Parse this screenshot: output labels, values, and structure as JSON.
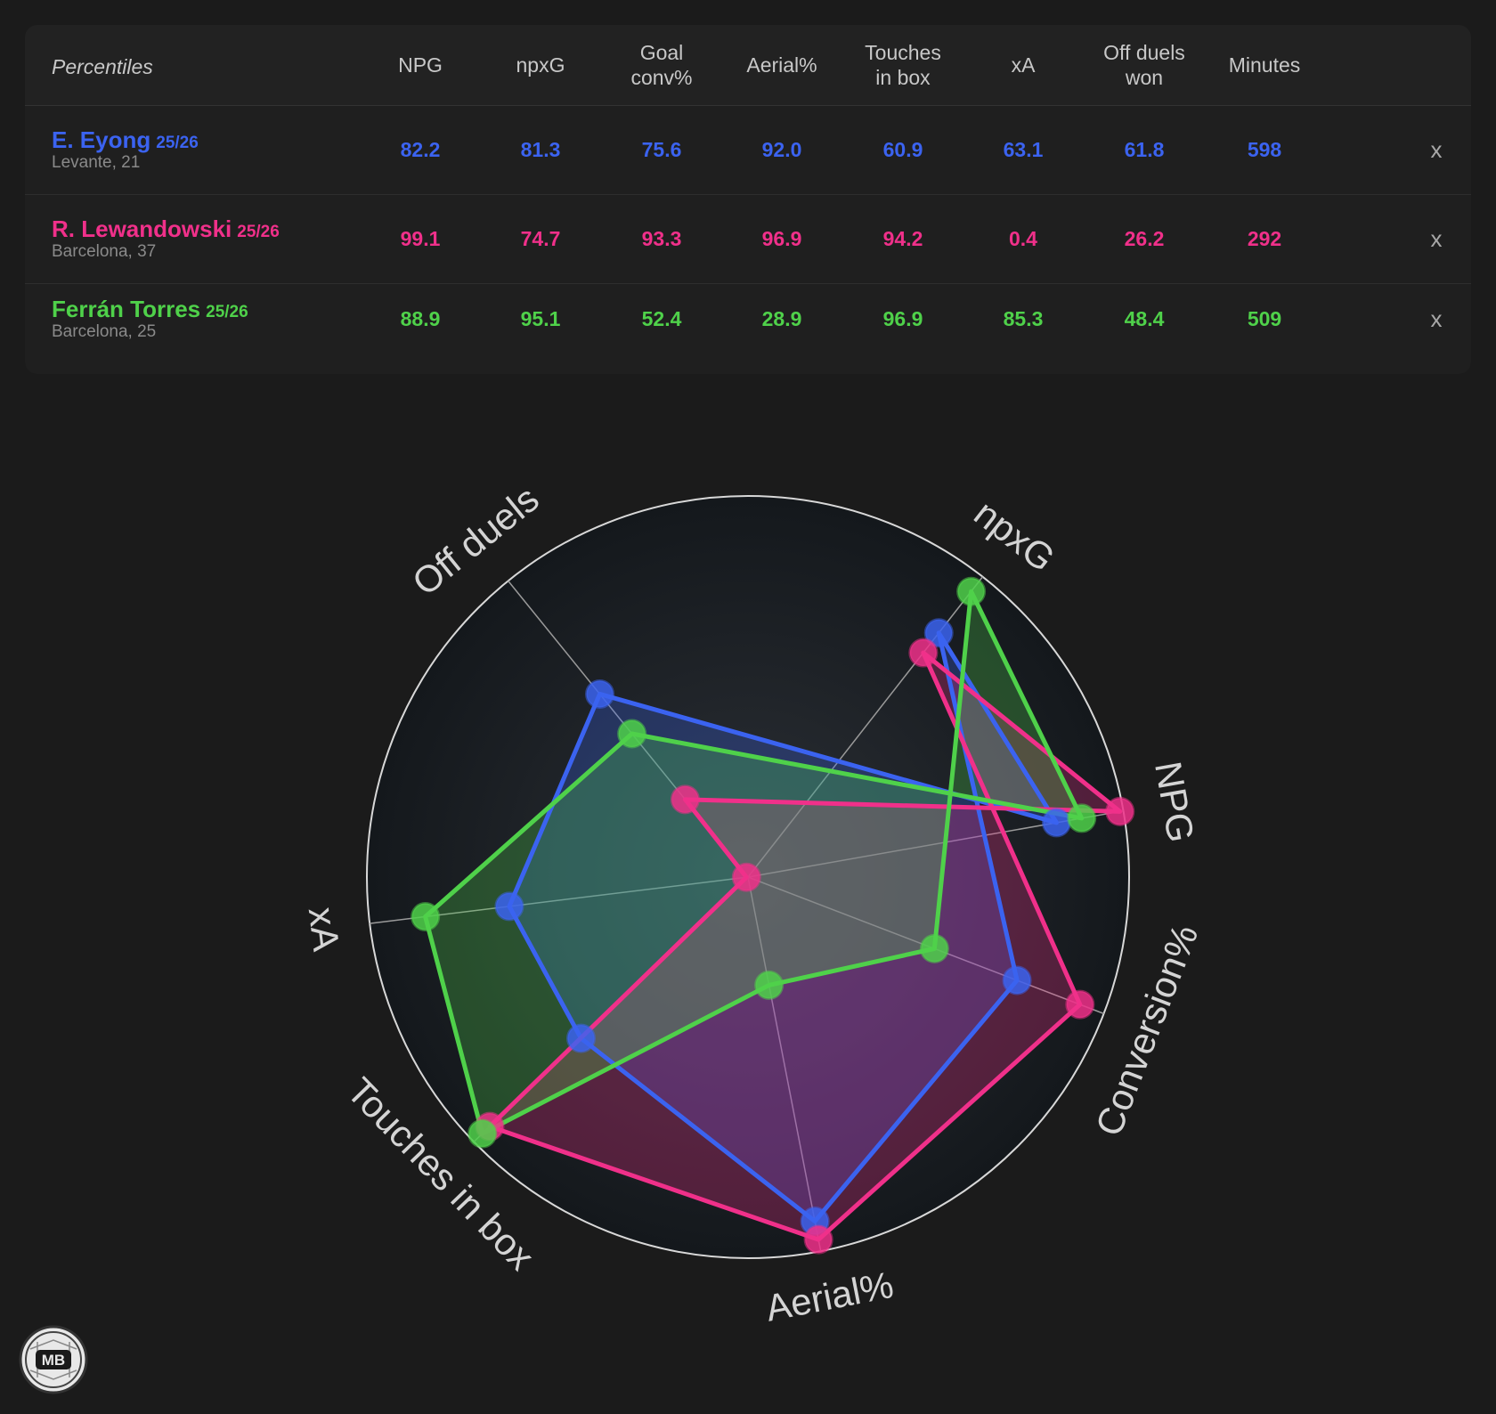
{
  "table": {
    "header_label": "Percentiles",
    "columns": [
      [
        "NPG"
      ],
      [
        "npxG"
      ],
      [
        "Goal",
        "conv%"
      ],
      [
        "Aerial%"
      ],
      [
        "Touches",
        "in box"
      ],
      [
        "xA"
      ],
      [
        "Off duels",
        "won"
      ],
      [
        "Minutes"
      ]
    ],
    "remove_label": "x"
  },
  "players": [
    {
      "name": "E. Eyong",
      "season": "25/26",
      "club": "Levante, 21",
      "color": "#3b63f0",
      "values": [
        "82.2",
        "81.3",
        "75.6",
        "92.0",
        "60.9",
        "63.1",
        "61.8",
        "598"
      ]
    },
    {
      "name": "R. Lewandowski",
      "season": "25/26",
      "club": "Barcelona, 37",
      "color": "#f0308a",
      "values": [
        "99.1",
        "74.7",
        "93.3",
        "96.9",
        "94.2",
        "0.4",
        "26.2",
        "292"
      ]
    },
    {
      "name": "Ferrán Torres",
      "season": "25/26",
      "club": "Barcelona, 25",
      "color": "#4fd14a",
      "values": [
        "88.9",
        "95.1",
        "52.4",
        "28.9",
        "96.9",
        "85.3",
        "48.4",
        "509"
      ]
    }
  ],
  "chart_data": {
    "type": "radar",
    "axes": [
      "NPG",
      "npxG",
      "Conversion%",
      "Aerial%",
      "Touches in box",
      "xA",
      "Off duels"
    ],
    "range": [
      0,
      100
    ],
    "series": [
      {
        "name": "E. Eyong",
        "color": "#3b63f0",
        "values": [
          82.2,
          81.3,
          75.6,
          92.0,
          60.9,
          63.1,
          61.8
        ]
      },
      {
        "name": "R. Lewandowski",
        "color": "#f0308a",
        "values": [
          99.1,
          74.7,
          93.3,
          96.9,
          94.2,
          0.4,
          26.2
        ]
      },
      {
        "name": "Ferrán Torres",
        "color": "#4fd14a",
        "values": [
          88.9,
          95.1,
          52.4,
          28.9,
          96.9,
          85.3,
          48.4
        ]
      }
    ]
  },
  "logo": {
    "text": "MB"
  }
}
